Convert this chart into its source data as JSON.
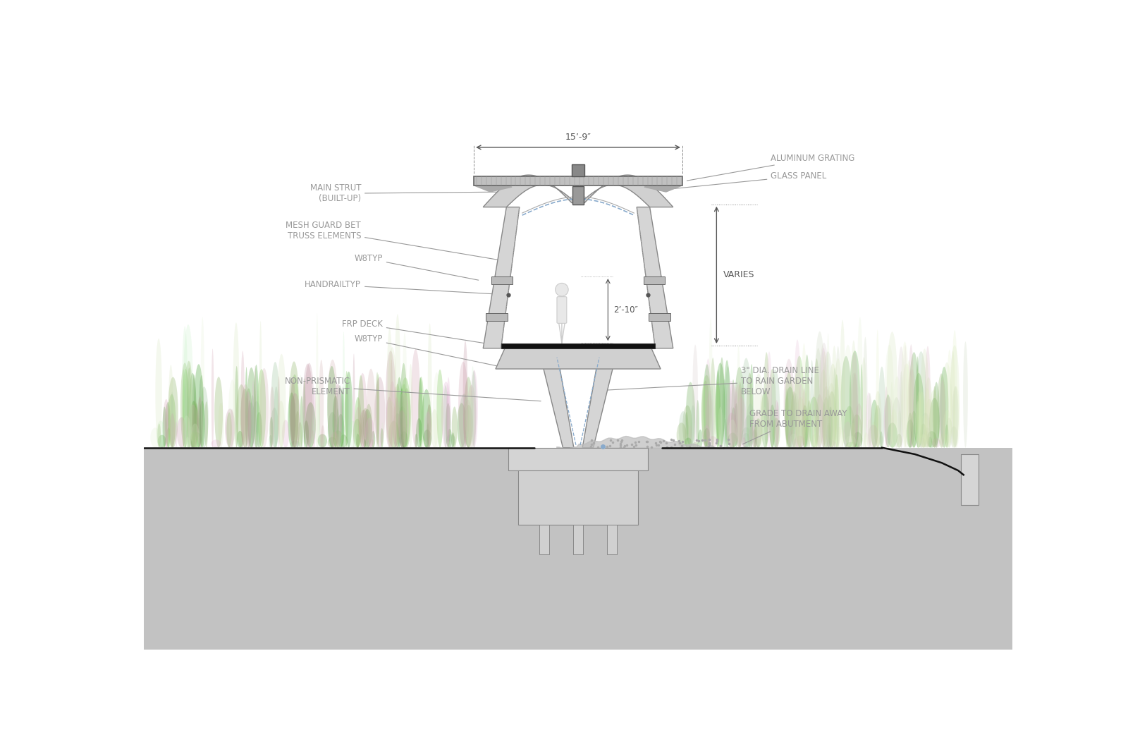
{
  "bg_color": "#ffffff",
  "soil_color": "#c0c0c0",
  "soil_dark": "#aaaaaa",
  "struct_fill": "#d8d8d8",
  "struct_edge": "#888888",
  "dark_line": "#444444",
  "black_line": "#222222",
  "blue_dash": "#88bbcc",
  "annotation_color": "#999999",
  "labels": {
    "aluminum_grating": "ALUMINUM GRATING",
    "glass_panel": "GLASS PANEL",
    "main_strut": "MAIN STRUT\n(BUILT-UP)",
    "mesh_guard": "MESH GUARD BET\nTRUSS ELEMENTS",
    "w8typ_upper": "W8TYP",
    "handrail": "HANDRAILTYP",
    "frp_deck": "FRP DECK",
    "w8typ_lower": "W8TYP",
    "non_prismatic": "NON-PRISMATIC\nELEMENT",
    "drain_line": "3\" DIA. DRAIN LINE\nTO RAIN GARDEN\nBELOW",
    "grade_drain": "GRADE TO DRAIN AWAY\nFROM ABUTMENT",
    "varies": "VARIES",
    "dimension": "15’-9″",
    "dim_inner": "2’-10″"
  },
  "font_size_label": 8.5,
  "font_size_dim": 8.5
}
